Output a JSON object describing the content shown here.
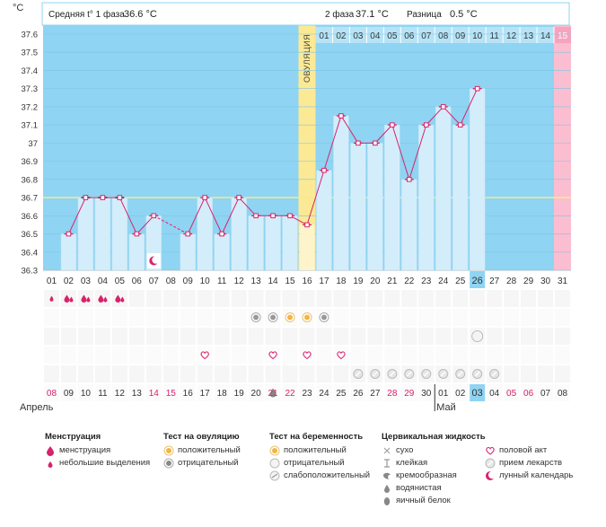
{
  "header": {
    "unit": "°C",
    "phase1_label": "Средняя t° 1 фаза",
    "phase1_value": "36.6 °C",
    "phase2_label": "2 фаза",
    "phase2_value": "37.1 °C",
    "diff_label": "Разница",
    "diff_value": "0.5 °C"
  },
  "ovulation_label": "ОВУЛЯЦИЯ",
  "colors": {
    "phase_bg": "#8fd4f2",
    "bar_fill": "#d4edfb",
    "line": "#d8226b",
    "ovulation": "#fbe995",
    "period_day": "#fbbdd0",
    "coverline": "#f5eb8e",
    "grid_light": "#f3f3f3",
    "grid_dark": "#e9e9e9",
    "today": "#8fd4f2"
  },
  "chart_data": {
    "type": "line",
    "ylabel": "°C",
    "ylim": [
      36.3,
      37.6
    ],
    "yticks": [
      "36.3",
      "36.4",
      "36.5",
      "36.6",
      "36.7",
      "36.8",
      "36.9",
      "37",
      "37.1",
      "37.2",
      "37.3",
      "37.4",
      "37.5",
      "37.6"
    ],
    "cycle_days": [
      "01",
      "02",
      "03",
      "04",
      "05",
      "06",
      "07",
      "08",
      "09",
      "10",
      "11",
      "12",
      "13",
      "14",
      "15",
      "16",
      "17",
      "18",
      "19",
      "20",
      "21",
      "22",
      "23",
      "24",
      "25",
      "26",
      "27",
      "28",
      "29",
      "30",
      "31"
    ],
    "dates": [
      "08",
      "09",
      "10",
      "11",
      "12",
      "13",
      "14",
      "15",
      "16",
      "17",
      "18",
      "19",
      "20",
      "21",
      "22",
      "23",
      "24",
      "25",
      "26",
      "27",
      "28",
      "29",
      "30",
      "01",
      "02",
      "03",
      "04",
      "05",
      "06",
      "07",
      "08"
    ],
    "date_red_indices": [
      0,
      6,
      7,
      13,
      14,
      20,
      21,
      27,
      28
    ],
    "date_black_border_indices": [
      23,
      24
    ],
    "months": [
      {
        "index": 0,
        "label": "Апрель"
      },
      {
        "index": 23,
        "label": "Май"
      }
    ],
    "temperatures": [
      null,
      36.5,
      36.7,
      36.7,
      36.7,
      36.5,
      36.6,
      null,
      36.5,
      36.7,
      36.5,
      36.7,
      36.6,
      36.6,
      36.6,
      36.55,
      36.85,
      37.15,
      37.0,
      37.0,
      37.1,
      36.8,
      37.1,
      37.2,
      37.1,
      37.3,
      null,
      null,
      null,
      null,
      null
    ],
    "dashed_gap_after_index": 6,
    "ovulation_day_index": 15,
    "phase2_day_numbers": [
      "01",
      "02",
      "03",
      "04",
      "05",
      "06",
      "07",
      "08",
      "09",
      "10",
      "11",
      "12",
      "13",
      "14",
      "15"
    ],
    "today_index": 25,
    "period_day_index": 30,
    "coverline": 36.7,
    "moon_marker_index": 6,
    "black_markers_indices": [
      2,
      3,
      4
    ],
    "rows": {
      "menstruation": [
        {
          "index": 0,
          "type": "small"
        },
        {
          "index": 1,
          "type": "full"
        },
        {
          "index": 2,
          "type": "full"
        },
        {
          "index": 3,
          "type": "full"
        },
        {
          "index": 4,
          "type": "full"
        }
      ],
      "ovulation_test": [
        {
          "index": 12,
          "type": "negative"
        },
        {
          "index": 13,
          "type": "negative"
        },
        {
          "index": 14,
          "type": "positive"
        },
        {
          "index": 15,
          "type": "positive"
        },
        {
          "index": 16,
          "type": "negative"
        }
      ],
      "pregnancy_test": [
        {
          "index": 25,
          "type": "negative"
        }
      ],
      "intercourse": [
        9,
        13,
        15,
        17
      ],
      "medicine": [
        18,
        19,
        20,
        21,
        22,
        23,
        24,
        25,
        26
      ],
      "cervical_fluid": [
        {
          "index": 13,
          "type": "watery"
        }
      ]
    }
  },
  "legend": {
    "menstruation": {
      "title": "Менструация",
      "items": [
        "менструация",
        "небольшие выделения"
      ]
    },
    "ovulation_test": {
      "title": "Тест на овуляцию",
      "items": [
        "положительный",
        "отрицательный"
      ]
    },
    "pregnancy_test": {
      "title": "Тест на беременность",
      "items": [
        "положительный",
        "отрицательный",
        "слабоположительный"
      ]
    },
    "cervical": {
      "title": "Цервикальная жидкость",
      "items": [
        "сухо",
        "клейкая",
        "кремообразная",
        "водянистая",
        "яичный белок"
      ]
    },
    "other": {
      "items": [
        "половой акт",
        "прием лекарств",
        "лунный календарь"
      ]
    }
  }
}
